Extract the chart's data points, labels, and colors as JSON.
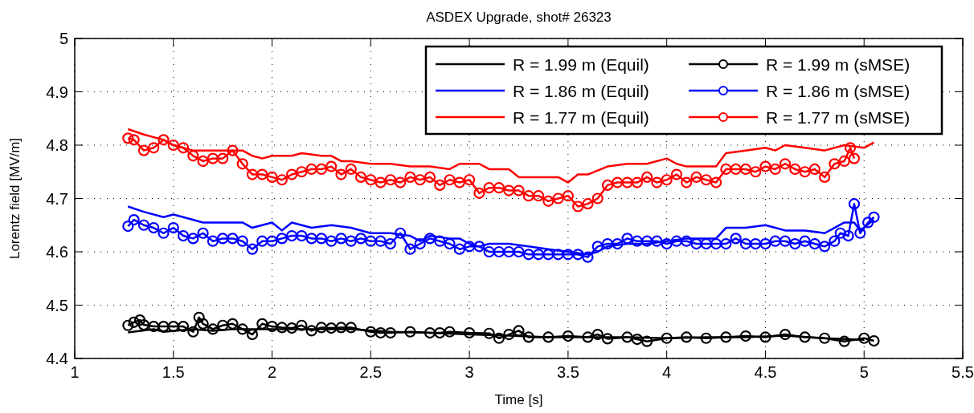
{
  "chart_data": {
    "type": "line",
    "title": "ASDEX Upgrade, shot# 26323",
    "xlabel": "Time [s]",
    "ylabel": "Lorentz field [MV/m]",
    "xlim": [
      1,
      5.5
    ],
    "xticks": [
      1,
      1.5,
      2,
      2.5,
      3,
      3.5,
      4,
      4.5,
      5,
      5.5
    ],
    "ylim": [
      4.4,
      5
    ],
    "yticks": [
      4.4,
      4.5,
      4.6,
      4.7,
      4.8,
      4.9,
      5
    ],
    "grid": true,
    "legend": "top right",
    "series": [
      {
        "name": "R = 1.99 m (Equil)",
        "color": "#000000",
        "marker": "none",
        "x": [
          1.27,
          1.4,
          1.45,
          1.6,
          1.7,
          1.8,
          2.0,
          2.2,
          2.4,
          2.6,
          2.8,
          3.0,
          3.2,
          3.4,
          3.6,
          3.8,
          4.0,
          4.2,
          4.4,
          4.6,
          4.8,
          5.0
        ],
        "values": [
          4.449,
          4.455,
          4.45,
          4.455,
          4.452,
          4.455,
          4.455,
          4.455,
          4.455,
          4.45,
          4.448,
          4.445,
          4.443,
          4.44,
          4.44,
          4.44,
          4.438,
          4.44,
          4.44,
          4.443,
          4.438,
          4.435
        ]
      },
      {
        "name": "R = 1.99 m (sMSE)",
        "color": "#000000",
        "marker": "circle",
        "x": [
          1.27,
          1.3,
          1.33,
          1.35,
          1.4,
          1.45,
          1.5,
          1.55,
          1.6,
          1.63,
          1.65,
          1.7,
          1.75,
          1.8,
          1.85,
          1.9,
          1.95,
          2.0,
          2.05,
          2.1,
          2.15,
          2.2,
          2.25,
          2.3,
          2.35,
          2.4,
          2.5,
          2.55,
          2.6,
          2.7,
          2.8,
          2.85,
          2.9,
          3.0,
          3.1,
          3.15,
          3.2,
          3.25,
          3.3,
          3.4,
          3.5,
          3.6,
          3.65,
          3.7,
          3.8,
          3.85,
          3.9,
          4.0,
          4.1,
          4.2,
          4.3,
          4.4,
          4.5,
          4.6,
          4.7,
          4.8,
          4.9,
          5.0,
          5.05
        ],
        "values": [
          4.462,
          4.468,
          4.472,
          4.463,
          4.46,
          4.46,
          4.46,
          4.46,
          4.45,
          4.477,
          4.465,
          4.455,
          4.462,
          4.465,
          4.455,
          4.445,
          4.465,
          4.46,
          4.458,
          4.457,
          4.462,
          4.452,
          4.458,
          4.457,
          4.458,
          4.458,
          4.45,
          4.448,
          4.448,
          4.45,
          4.448,
          4.448,
          4.45,
          4.448,
          4.447,
          4.438,
          4.445,
          4.452,
          4.44,
          4.44,
          4.442,
          4.44,
          4.445,
          4.437,
          4.44,
          4.436,
          4.432,
          4.438,
          4.44,
          4.438,
          4.44,
          4.442,
          4.44,
          4.445,
          4.44,
          4.438,
          4.432,
          4.438,
          4.433
        ]
      },
      {
        "name": "R = 1.86 m (Equil)",
        "color": "#0000ff",
        "marker": "none",
        "x": [
          1.27,
          1.35,
          1.45,
          1.5,
          1.55,
          1.65,
          1.7,
          1.8,
          1.85,
          1.9,
          1.95,
          2.0,
          2.05,
          2.1,
          2.2,
          2.3,
          2.4,
          2.5,
          2.6,
          2.7,
          2.75,
          2.8,
          2.9,
          2.95,
          3.0,
          3.05,
          3.1,
          3.2,
          3.3,
          3.4,
          3.5,
          3.6,
          3.65,
          3.7,
          3.8,
          3.9,
          4.0,
          4.1,
          4.2,
          4.25,
          4.3,
          4.4,
          4.5,
          4.55,
          4.6,
          4.7,
          4.8,
          4.85,
          4.9,
          4.95,
          4.98,
          5.05
        ],
        "values": [
          4.685,
          4.675,
          4.665,
          4.67,
          4.665,
          4.655,
          4.655,
          4.655,
          4.655,
          4.645,
          4.65,
          4.655,
          4.64,
          4.655,
          4.645,
          4.65,
          4.645,
          4.635,
          4.635,
          4.63,
          4.62,
          4.63,
          4.625,
          4.625,
          4.615,
          4.61,
          4.615,
          4.615,
          4.61,
          4.605,
          4.6,
          4.595,
          4.6,
          4.61,
          4.615,
          4.615,
          4.62,
          4.625,
          4.625,
          4.625,
          4.645,
          4.645,
          4.65,
          4.645,
          4.64,
          4.64,
          4.635,
          4.645,
          4.655,
          4.655,
          4.64,
          4.66
        ]
      },
      {
        "name": "R = 1.86 m (sMSE)",
        "color": "#0000ff",
        "marker": "circle",
        "x": [
          1.27,
          1.3,
          1.35,
          1.4,
          1.45,
          1.5,
          1.55,
          1.6,
          1.65,
          1.7,
          1.75,
          1.8,
          1.85,
          1.9,
          1.95,
          2.0,
          2.05,
          2.1,
          2.15,
          2.2,
          2.25,
          2.3,
          2.35,
          2.4,
          2.45,
          2.5,
          2.55,
          2.6,
          2.65,
          2.7,
          2.75,
          2.8,
          2.85,
          2.9,
          2.95,
          3.0,
          3.05,
          3.1,
          3.15,
          3.2,
          3.25,
          3.3,
          3.35,
          3.4,
          3.45,
          3.5,
          3.55,
          3.6,
          3.65,
          3.7,
          3.75,
          3.8,
          3.85,
          3.9,
          3.95,
          4.0,
          4.05,
          4.1,
          4.15,
          4.2,
          4.25,
          4.3,
          4.35,
          4.4,
          4.45,
          4.5,
          4.55,
          4.6,
          4.65,
          4.7,
          4.75,
          4.8,
          4.85,
          4.88,
          4.92,
          4.95,
          4.98,
          5.02,
          5.05
        ],
        "values": [
          4.648,
          4.66,
          4.65,
          4.645,
          4.635,
          4.645,
          4.63,
          4.625,
          4.635,
          4.62,
          4.625,
          4.625,
          4.62,
          4.605,
          4.62,
          4.62,
          4.625,
          4.63,
          4.63,
          4.625,
          4.625,
          4.62,
          4.625,
          4.62,
          4.625,
          4.62,
          4.62,
          4.615,
          4.635,
          4.605,
          4.615,
          4.625,
          4.62,
          4.615,
          4.605,
          4.61,
          4.61,
          4.6,
          4.6,
          4.6,
          4.6,
          4.595,
          4.595,
          4.595,
          4.595,
          4.595,
          4.595,
          4.59,
          4.61,
          4.615,
          4.615,
          4.625,
          4.62,
          4.62,
          4.62,
          4.615,
          4.62,
          4.62,
          4.615,
          4.615,
          4.615,
          4.615,
          4.625,
          4.615,
          4.615,
          4.615,
          4.62,
          4.62,
          4.615,
          4.62,
          4.615,
          4.61,
          4.62,
          4.635,
          4.63,
          4.69,
          4.635,
          4.655,
          4.665
        ]
      },
      {
        "name": "R = 1.77 m (Equil)",
        "color": "#ff0000",
        "marker": "none",
        "x": [
          1.27,
          1.35,
          1.45,
          1.5,
          1.6,
          1.7,
          1.8,
          1.85,
          1.9,
          1.95,
          2.0,
          2.1,
          2.15,
          2.25,
          2.3,
          2.35,
          2.4,
          2.5,
          2.6,
          2.7,
          2.8,
          2.9,
          2.95,
          3.05,
          3.1,
          3.2,
          3.25,
          3.3,
          3.4,
          3.45,
          3.5,
          3.55,
          3.6,
          3.7,
          3.8,
          3.9,
          4.0,
          4.05,
          4.1,
          4.2,
          4.25,
          4.3,
          4.4,
          4.5,
          4.55,
          4.6,
          4.7,
          4.8,
          4.9,
          5.0,
          5.05
        ],
        "values": [
          4.83,
          4.82,
          4.81,
          4.8,
          4.79,
          4.79,
          4.79,
          4.79,
          4.78,
          4.775,
          4.78,
          4.78,
          4.785,
          4.78,
          4.78,
          4.77,
          4.77,
          4.765,
          4.765,
          4.76,
          4.76,
          4.755,
          4.765,
          4.765,
          4.755,
          4.755,
          4.74,
          4.74,
          4.74,
          4.74,
          4.73,
          4.745,
          4.745,
          4.76,
          4.765,
          4.765,
          4.775,
          4.765,
          4.76,
          4.76,
          4.76,
          4.785,
          4.79,
          4.795,
          4.79,
          4.8,
          4.795,
          4.79,
          4.8,
          4.795,
          4.805
        ]
      },
      {
        "name": "R = 1.77 m (sMSE)",
        "color": "#ff0000",
        "marker": "circle",
        "x": [
          1.27,
          1.3,
          1.35,
          1.4,
          1.45,
          1.5,
          1.55,
          1.6,
          1.65,
          1.7,
          1.75,
          1.8,
          1.85,
          1.9,
          1.95,
          2.0,
          2.05,
          2.1,
          2.15,
          2.2,
          2.25,
          2.3,
          2.35,
          2.4,
          2.45,
          2.5,
          2.55,
          2.6,
          2.65,
          2.7,
          2.75,
          2.8,
          2.85,
          2.9,
          2.95,
          3.0,
          3.05,
          3.1,
          3.15,
          3.2,
          3.25,
          3.3,
          3.35,
          3.4,
          3.45,
          3.5,
          3.55,
          3.6,
          3.65,
          3.7,
          3.75,
          3.8,
          3.85,
          3.9,
          3.95,
          4.0,
          4.05,
          4.1,
          4.15,
          4.2,
          4.25,
          4.3,
          4.35,
          4.4,
          4.45,
          4.5,
          4.55,
          4.6,
          4.65,
          4.7,
          4.75,
          4.8,
          4.85,
          4.9,
          4.93,
          4.95
        ],
        "values": [
          4.813,
          4.81,
          4.79,
          4.795,
          4.81,
          4.8,
          4.795,
          4.78,
          4.77,
          4.775,
          4.775,
          4.79,
          4.765,
          4.745,
          4.745,
          4.74,
          4.735,
          4.745,
          4.75,
          4.755,
          4.755,
          4.76,
          4.745,
          4.755,
          4.74,
          4.735,
          4.73,
          4.735,
          4.73,
          4.74,
          4.735,
          4.74,
          4.725,
          4.735,
          4.73,
          4.735,
          4.71,
          4.72,
          4.72,
          4.715,
          4.715,
          4.705,
          4.705,
          4.695,
          4.7,
          4.705,
          4.685,
          4.69,
          4.7,
          4.725,
          4.73,
          4.73,
          4.73,
          4.74,
          4.73,
          4.735,
          4.745,
          4.73,
          4.74,
          4.735,
          4.73,
          4.755,
          4.755,
          4.755,
          4.75,
          4.76,
          4.755,
          4.765,
          4.755,
          4.75,
          4.755,
          4.74,
          4.765,
          4.77,
          4.795,
          4.775
        ]
      }
    ]
  }
}
